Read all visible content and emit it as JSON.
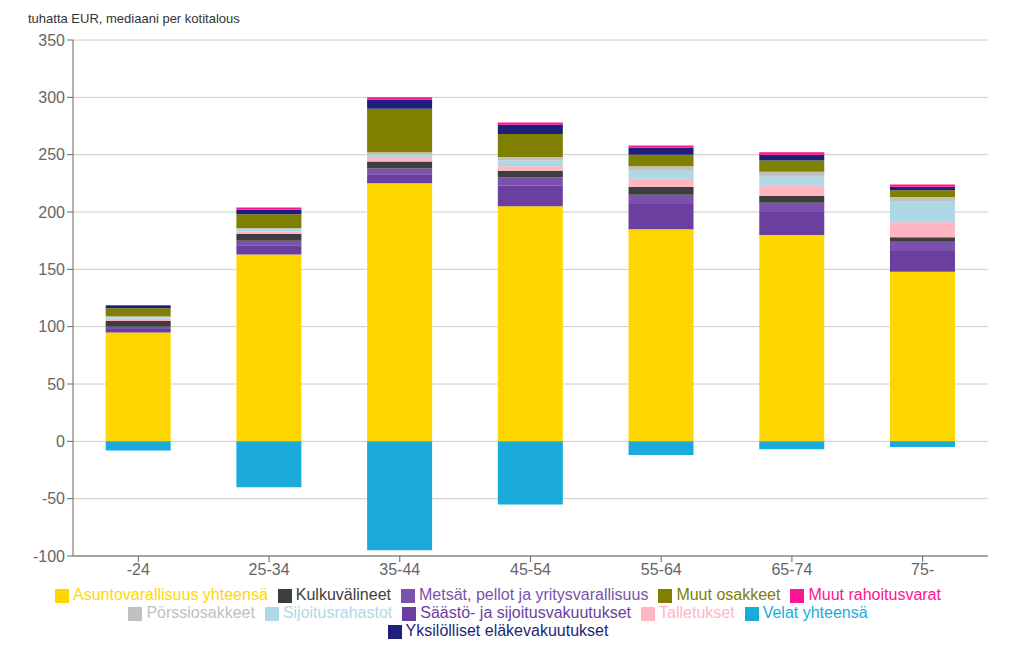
{
  "chart_data": {
    "type": "bar",
    "stacked": true,
    "ylabel": "tuhatta EUR, mediaani per kotitalous",
    "categories": [
      "-24",
      "25-34",
      "35-44",
      "45-54",
      "55-64",
      "65-74",
      "75-"
    ],
    "series": [
      {
        "name": "Asuntovarallisuus yhteensä",
        "color": "#FFD700",
        "values": [
          95,
          163,
          225,
          205,
          185,
          180,
          148
        ]
      },
      {
        "name": "Säästö- ja sijoitusvakuutukset",
        "color": "#6B3FA0",
        "values": [
          3,
          8,
          8,
          18,
          22,
          20,
          18
        ]
      },
      {
        "name": "Metsät, pellot ja yritysvarallisuus",
        "color": "#7B52AB",
        "values": [
          2,
          4,
          5,
          7,
          8,
          8,
          8
        ]
      },
      {
        "name": "Kulkuvälineet",
        "color": "#3D3D3D",
        "values": [
          5,
          6,
          6,
          6,
          7,
          6,
          4
        ]
      },
      {
        "name": "Talletukset",
        "color": "#FFB6C1",
        "values": [
          2,
          2,
          3,
          4,
          7,
          9,
          13
        ]
      },
      {
        "name": "Sijoitusrahastot",
        "color": "#ADD8E6",
        "values": [
          1,
          2,
          3,
          5,
          7,
          8,
          18
        ]
      },
      {
        "name": "Pörssiosakkeet",
        "color": "#C0C0C0",
        "values": [
          1,
          1,
          2,
          3,
          4,
          4,
          4
        ]
      },
      {
        "name": "Muut osakkeet",
        "color": "#808000",
        "values": [
          7,
          12,
          38,
          20,
          10,
          10,
          6
        ]
      },
      {
        "name": "Yksilölliset eläkevakuutukset",
        "color": "#1F1F7A",
        "values": [
          2,
          4,
          8,
          8,
          6,
          5,
          3
        ]
      },
      {
        "name": "Muut rahoitusvarat",
        "color": "#FF1493",
        "values": [
          1,
          2,
          2,
          2,
          2,
          2,
          2
        ]
      },
      {
        "name": "Velat yhteensä",
        "color": "#1AABDB",
        "values": [
          -8,
          -40,
          -95,
          -55,
          -12,
          -7,
          -5
        ]
      }
    ],
    "ylim": [
      -100,
      350
    ],
    "yticks": [
      -100,
      -50,
      0,
      50,
      100,
      150,
      200,
      250,
      300,
      350
    ],
    "grid": true,
    "legend": "bottom"
  }
}
